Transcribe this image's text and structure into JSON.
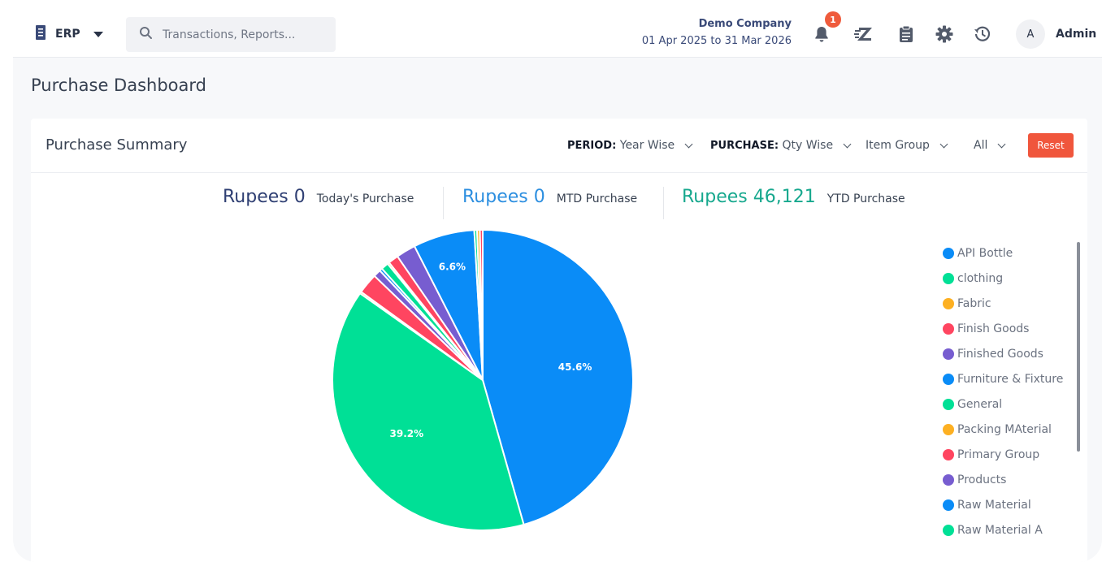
{
  "header": {
    "app_label": "ERP",
    "search_placeholder": "Transactions, Reports...",
    "company_name": "Demo Company",
    "company_period": "01 Apr 2025 to 31 Mar 2026",
    "notification_count": "1",
    "avatar_initial": "A",
    "user_name": "Admin"
  },
  "page": {
    "title": "Purchase Dashboard"
  },
  "summary": {
    "title": "Purchase Summary",
    "filters": {
      "period_label": "PERIOD:",
      "period_value": "Year Wise",
      "purchase_label": "PURCHASE:",
      "purchase_value": "Qty Wise",
      "group_value": "Item Group",
      "scope_value": "All"
    },
    "reset_label": "Reset",
    "stats": [
      {
        "amount": "Rupees 0",
        "label": "Today's Purchase",
        "color": "#2f3f73"
      },
      {
        "amount": "Rupees 0",
        "label": "MTD Purchase",
        "color": "#2d8fe0"
      },
      {
        "amount": "Rupees 46,121",
        "label": "YTD Purchase",
        "color": "#17a88e"
      }
    ]
  },
  "chart_data": {
    "type": "pie",
    "slices": [
      {
        "name": "API Bottle",
        "value": 45.6,
        "label": "45.6%",
        "color": "#0a8cf7"
      },
      {
        "name": "clothing",
        "value": 39.2,
        "label": "39.2%",
        "color": "#00e096"
      },
      {
        "name": "Fabric",
        "value": 0.2,
        "label": "",
        "color": "#fdb022"
      },
      {
        "name": "Finish Goods",
        "value": 2.2,
        "label": "",
        "color": "#ff4560"
      },
      {
        "name": "Finished Goods",
        "value": 0.8,
        "label": "",
        "color": "#775dd0"
      },
      {
        "name": "Furniture & Fixture",
        "value": 0.3,
        "label": "",
        "color": "#0a8cf7"
      },
      {
        "name": "General",
        "value": 0.8,
        "label": "",
        "color": "#00e096"
      },
      {
        "name": "Packing MAterial",
        "value": 0.2,
        "label": "",
        "color": "#fdb022"
      },
      {
        "name": "Primary Group",
        "value": 1.1,
        "label": "",
        "color": "#ff4560"
      },
      {
        "name": "Products",
        "value": 2.1,
        "label": "",
        "color": "#775dd0"
      },
      {
        "name": "Raw Material",
        "value": 6.6,
        "label": "6.6%",
        "color": "#0a8cf7"
      },
      {
        "name": "Raw Material A",
        "value": 0.3,
        "label": "",
        "color": "#00e096"
      },
      {
        "name": "",
        "value": 0.3,
        "label": "",
        "color": "#fdb022"
      },
      {
        "name": "",
        "value": 0.3,
        "label": "",
        "color": "#ff4560"
      }
    ]
  },
  "legend": [
    {
      "label": "API Bottle",
      "color": "#0a8cf7"
    },
    {
      "label": "clothing",
      "color": "#00e096"
    },
    {
      "label": "Fabric",
      "color": "#fdb022"
    },
    {
      "label": "Finish Goods",
      "color": "#ff4560"
    },
    {
      "label": "Finished Goods",
      "color": "#775dd0"
    },
    {
      "label": "Furniture & Fixture",
      "color": "#0a8cf7"
    },
    {
      "label": "General",
      "color": "#00e096"
    },
    {
      "label": "Packing MAterial",
      "color": "#fdb022"
    },
    {
      "label": "Primary Group",
      "color": "#ff4560"
    },
    {
      "label": "Products",
      "color": "#775dd0"
    },
    {
      "label": "Raw Material",
      "color": "#0a8cf7"
    },
    {
      "label": "Raw Material A",
      "color": "#00e096"
    }
  ]
}
